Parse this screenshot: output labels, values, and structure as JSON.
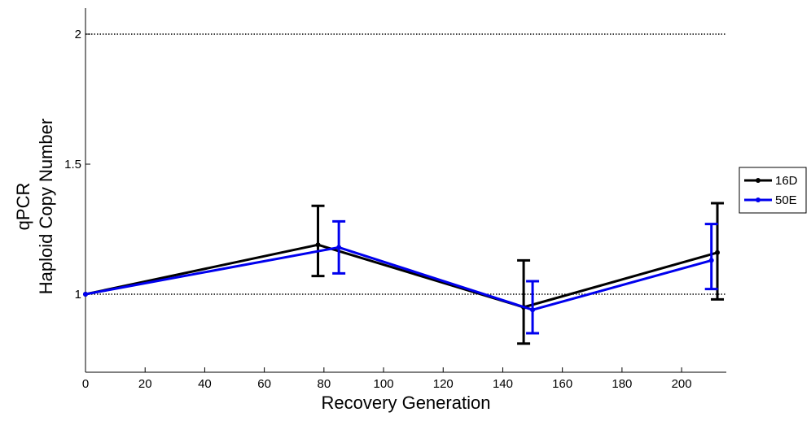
{
  "chart_data": {
    "type": "line",
    "title": "",
    "xlabel": "Recovery Generation",
    "ylabel_lines": [
      "qPCR",
      "Haploid Copy Number"
    ],
    "xlim": [
      0,
      215
    ],
    "ylim": [
      0.7,
      2.1
    ],
    "xticks": [
      0,
      20,
      40,
      60,
      80,
      100,
      120,
      140,
      160,
      180,
      200
    ],
    "yticks": [
      1,
      1.5,
      2
    ],
    "ytick_labels": [
      "1",
      "1.5",
      "2"
    ],
    "reference_lines": [
      1,
      2
    ],
    "grid": false,
    "legend_position": "outside-right",
    "series": [
      {
        "name": "16D",
        "color": "#000000",
        "x": [
          0,
          78,
          147,
          212
        ],
        "y": [
          1.0,
          1.19,
          0.95,
          1.16
        ],
        "err_low": [
          0,
          0.12,
          0.14,
          0.18
        ],
        "err_high": [
          0,
          0.15,
          0.18,
          0.19
        ]
      },
      {
        "name": "50E",
        "color": "#0000ee",
        "x": [
          0,
          85,
          150,
          210
        ],
        "y": [
          1.0,
          1.18,
          0.94,
          1.13
        ],
        "err_low": [
          0,
          0.1,
          0.09,
          0.11
        ],
        "err_high": [
          0,
          0.1,
          0.11,
          0.14
        ]
      }
    ]
  }
}
